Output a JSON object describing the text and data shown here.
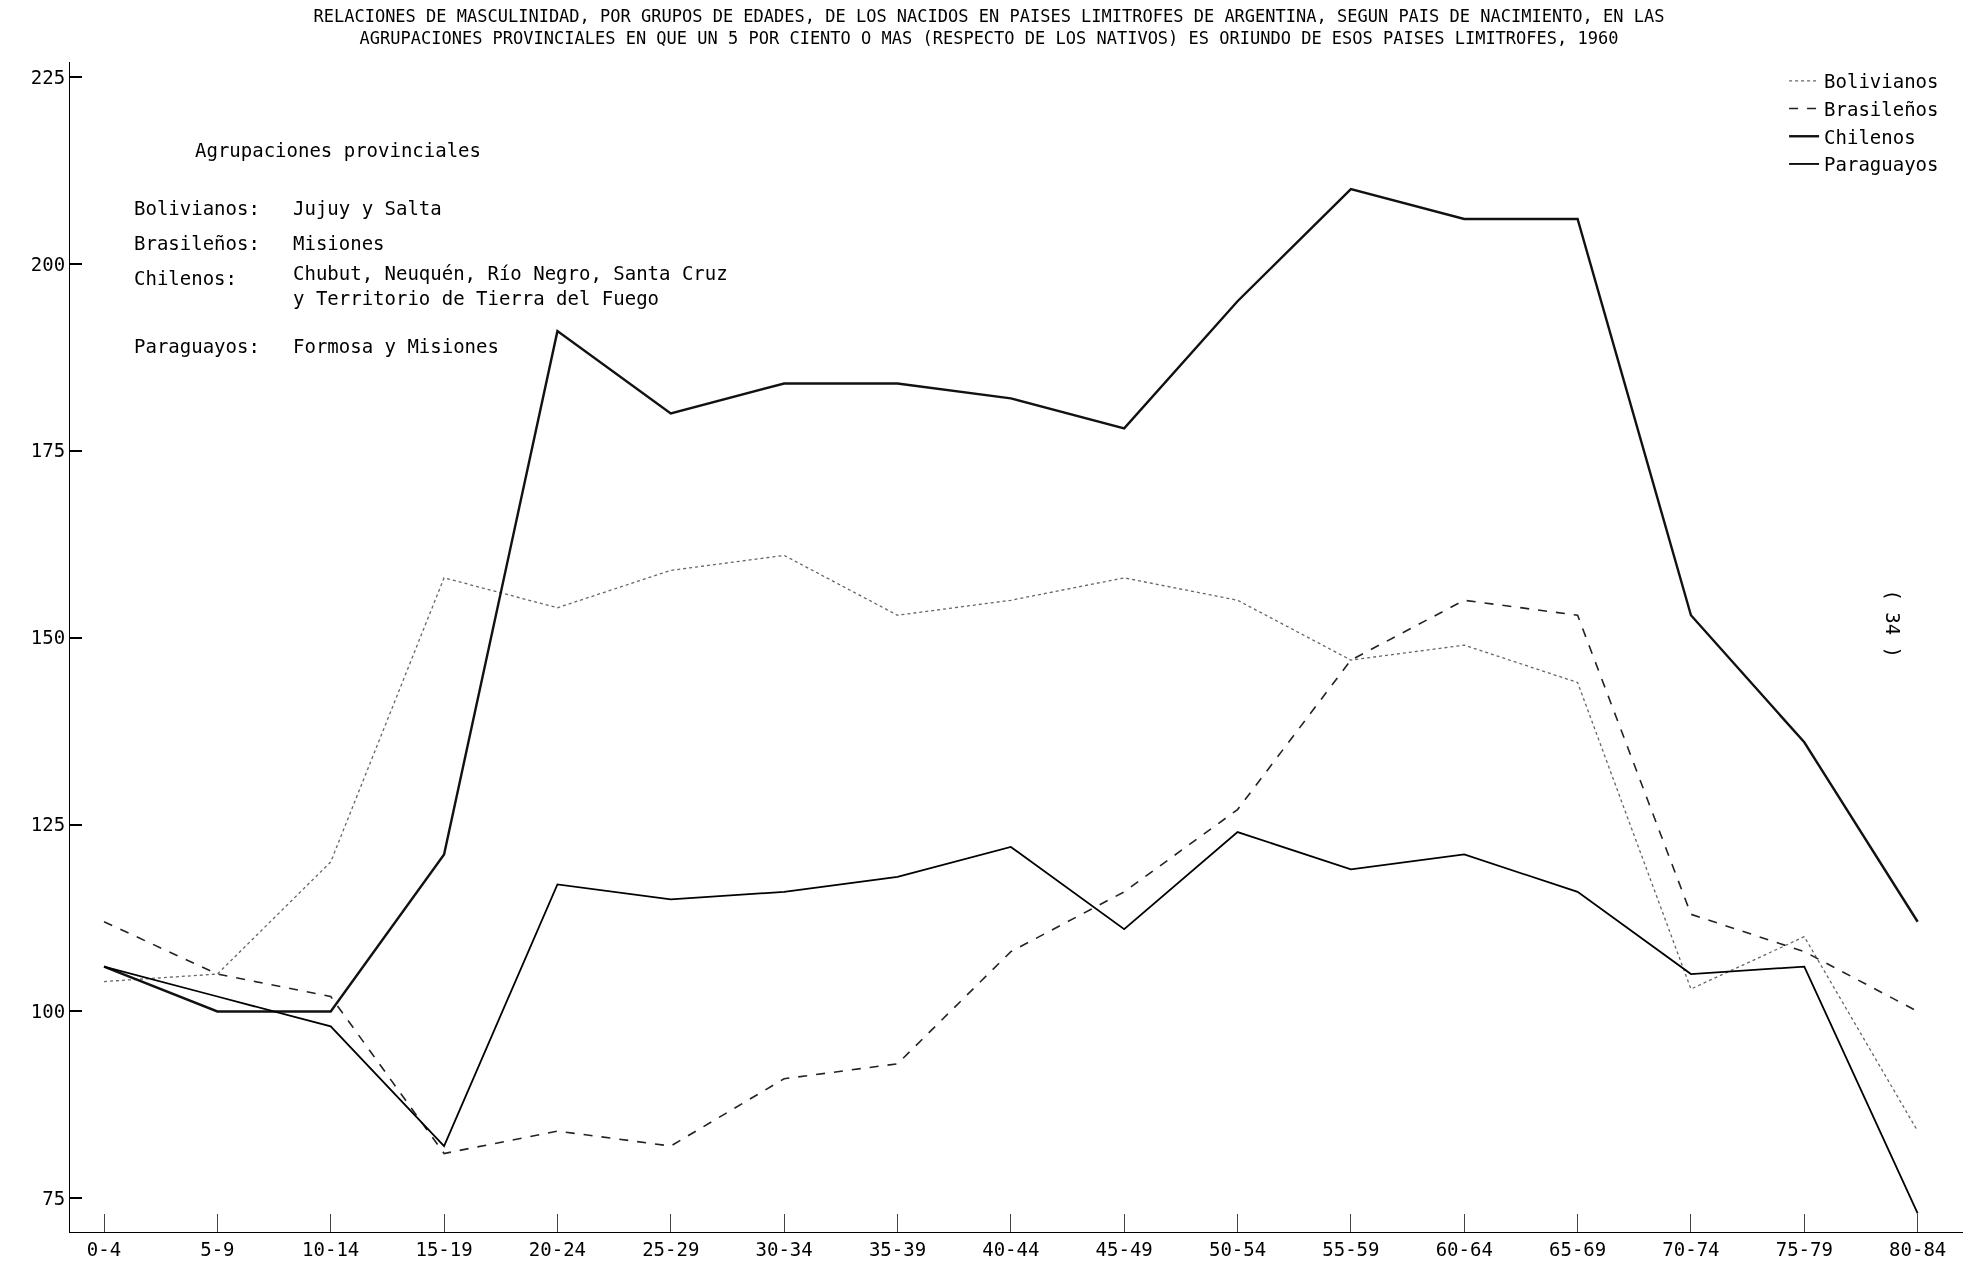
{
  "chart_data": {
    "type": "line",
    "title": "RELACIONES DE MASCULINIDAD, POR GRUPOS DE EDADES, DE LOS NACIDOS EN PAISES LIMITROFES DE ARGENTINA, SEGUN PAIS DE NACIMIENTO, EN LAS\nAGRUPACIONES PROVINCIALES EN QUE UN 5 POR CIENTO O MAS (RESPECTO DE LOS NATIVOS) ES ORIUNDO DE ESOS PAISES LIMITROFES, 1960",
    "categories": [
      "0-4",
      "5-9",
      "10-14",
      "15-19",
      "20-24",
      "25-29",
      "30-34",
      "35-39",
      "40-44",
      "45-49",
      "50-54",
      "55-59",
      "60-64",
      "65-69",
      "70-74",
      "75-79",
      "80-84"
    ],
    "series": [
      {
        "name": "Bolivianos",
        "color": "#666666",
        "line_style": "dotted",
        "values": [
          104,
          105,
          120,
          158,
          154,
          159,
          161,
          153,
          155,
          158,
          155,
          147,
          149,
          144,
          103,
          110,
          84
        ]
      },
      {
        "name": "Brasileños",
        "color": "#222222",
        "line_style": "dashed",
        "values": [
          112,
          105,
          102,
          81,
          84,
          82,
          91,
          93,
          108,
          116,
          127,
          147,
          155,
          153,
          113,
          108,
          100
        ]
      },
      {
        "name": "Chilenos",
        "color": "#111111",
        "line_style": "solid",
        "values": [
          106,
          100,
          100,
          121,
          191,
          180,
          184,
          184,
          182,
          178,
          195,
          210,
          206,
          206,
          153,
          136,
          112
        ]
      },
      {
        "name": "Paraguayos",
        "color": "#000000",
        "line_style": "solid",
        "values": [
          106,
          102,
          98,
          82,
          117,
          115,
          116,
          118,
          122,
          111,
          124,
          119,
          121,
          116,
          105,
          106,
          73
        ]
      }
    ],
    "ylim": [
      70.5,
      227
    ],
    "yticks": [
      75,
      100,
      125,
      150,
      175,
      200,
      225
    ],
    "annotations": [
      "Agrupaciones provinciales",
      "Bolivianos:",
      "Jujuy y Salta",
      "Brasileños:",
      "Misiones",
      "Chilenos:",
      "Chubut, Neuquén, Río Negro, Santa Cruz\ny Territorio de Tierra del Fuego",
      "Paraguayos:",
      "Formosa y Misiones",
      "( 34 )"
    ],
    "legend": "top right",
    "marker": "none"
  }
}
